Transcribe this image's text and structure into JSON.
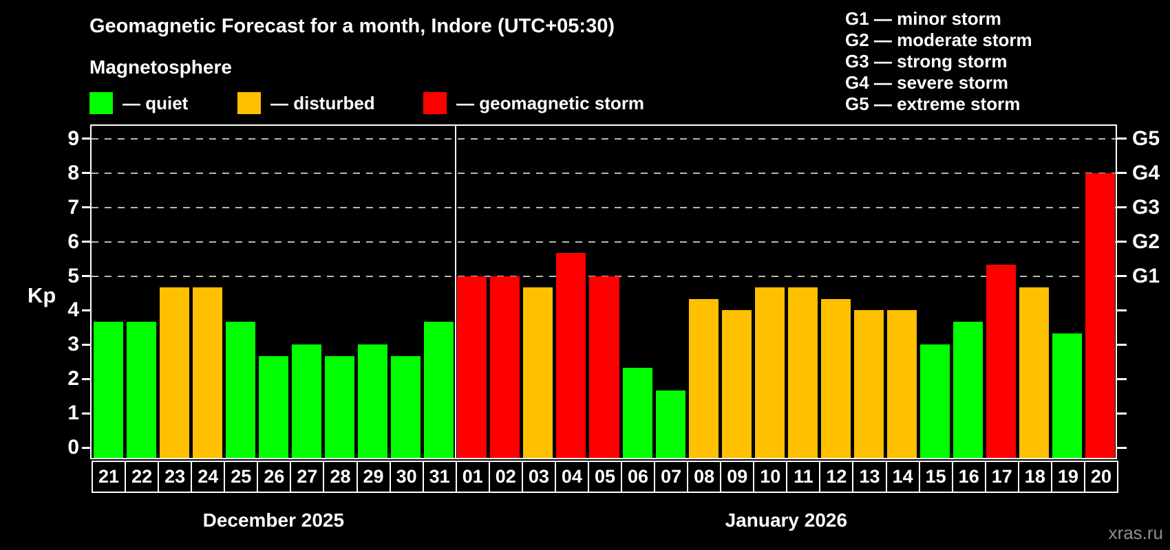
{
  "title": "Geomagnetic Forecast for a month, Indore (UTC+05:30)",
  "subtitle": "Magnetosphere",
  "status_legend": {
    "items": [
      {
        "key": "quiet",
        "label": "— quiet",
        "color": "#00ff00"
      },
      {
        "key": "disturbed",
        "label": "— disturbed",
        "color": "#ffc000"
      },
      {
        "key": "storm",
        "label": "— geomagnetic storm",
        "color": "#ff0000"
      }
    ]
  },
  "g_scale_legend": {
    "items": [
      "G1 — minor storm",
      "G2 — moderate storm",
      "G3 — strong storm",
      "G4 — severe storm",
      "G5 — extreme storm"
    ]
  },
  "watermark": "xras.ru",
  "chart_data": {
    "type": "bar",
    "title": "Geomagnetic Forecast for a month, Indore (UTC+05:30)",
    "ylabel": "Kp",
    "ylim": [
      0,
      9.4
    ],
    "yticks": [
      0,
      1,
      2,
      3,
      4,
      5,
      6,
      7,
      8,
      9
    ],
    "grid_kp_levels": [
      5,
      6,
      7,
      8,
      9
    ],
    "grid_on": true,
    "legend_position": "top-left",
    "right_axis": [
      {
        "kp": 5,
        "label": "G1"
      },
      {
        "kp": 6,
        "label": "G2"
      },
      {
        "kp": 7,
        "label": "G3"
      },
      {
        "kp": 8,
        "label": "G4"
      },
      {
        "kp": 9,
        "label": "G5"
      }
    ],
    "months": [
      {
        "label": "December 2025",
        "bars": [
          {
            "day": "21",
            "kp": 3.67,
            "status": "quiet"
          },
          {
            "day": "22",
            "kp": 3.67,
            "status": "quiet"
          },
          {
            "day": "23",
            "kp": 4.67,
            "status": "disturbed"
          },
          {
            "day": "24",
            "kp": 4.67,
            "status": "disturbed"
          },
          {
            "day": "25",
            "kp": 3.67,
            "status": "quiet"
          },
          {
            "day": "26",
            "kp": 2.67,
            "status": "quiet"
          },
          {
            "day": "27",
            "kp": 3.0,
            "status": "quiet"
          },
          {
            "day": "28",
            "kp": 2.67,
            "status": "quiet"
          },
          {
            "day": "29",
            "kp": 3.0,
            "status": "quiet"
          },
          {
            "day": "30",
            "kp": 2.67,
            "status": "quiet"
          },
          {
            "day": "31",
            "kp": 3.67,
            "status": "quiet"
          }
        ]
      },
      {
        "label": "January 2026",
        "bars": [
          {
            "day": "01",
            "kp": 5.0,
            "status": "storm"
          },
          {
            "day": "02",
            "kp": 5.0,
            "status": "storm"
          },
          {
            "day": "03",
            "kp": 4.67,
            "status": "disturbed"
          },
          {
            "day": "04",
            "kp": 5.67,
            "status": "storm"
          },
          {
            "day": "05",
            "kp": 5.0,
            "status": "storm"
          },
          {
            "day": "06",
            "kp": 2.33,
            "status": "quiet"
          },
          {
            "day": "07",
            "kp": 1.67,
            "status": "quiet"
          },
          {
            "day": "08",
            "kp": 4.33,
            "status": "disturbed"
          },
          {
            "day": "09",
            "kp": 4.0,
            "status": "disturbed"
          },
          {
            "day": "10",
            "kp": 4.67,
            "status": "disturbed"
          },
          {
            "day": "11",
            "kp": 4.67,
            "status": "disturbed"
          },
          {
            "day": "12",
            "kp": 4.33,
            "status": "disturbed"
          },
          {
            "day": "13",
            "kp": 4.0,
            "status": "disturbed"
          },
          {
            "day": "14",
            "kp": 4.0,
            "status": "disturbed"
          },
          {
            "day": "15",
            "kp": 3.0,
            "status": "quiet"
          },
          {
            "day": "16",
            "kp": 3.67,
            "status": "quiet"
          },
          {
            "day": "17",
            "kp": 5.33,
            "status": "storm"
          },
          {
            "day": "18",
            "kp": 4.67,
            "status": "disturbed"
          },
          {
            "day": "19",
            "kp": 3.33,
            "status": "quiet"
          },
          {
            "day": "20",
            "kp": 8.0,
            "status": "storm"
          }
        ]
      }
    ]
  }
}
